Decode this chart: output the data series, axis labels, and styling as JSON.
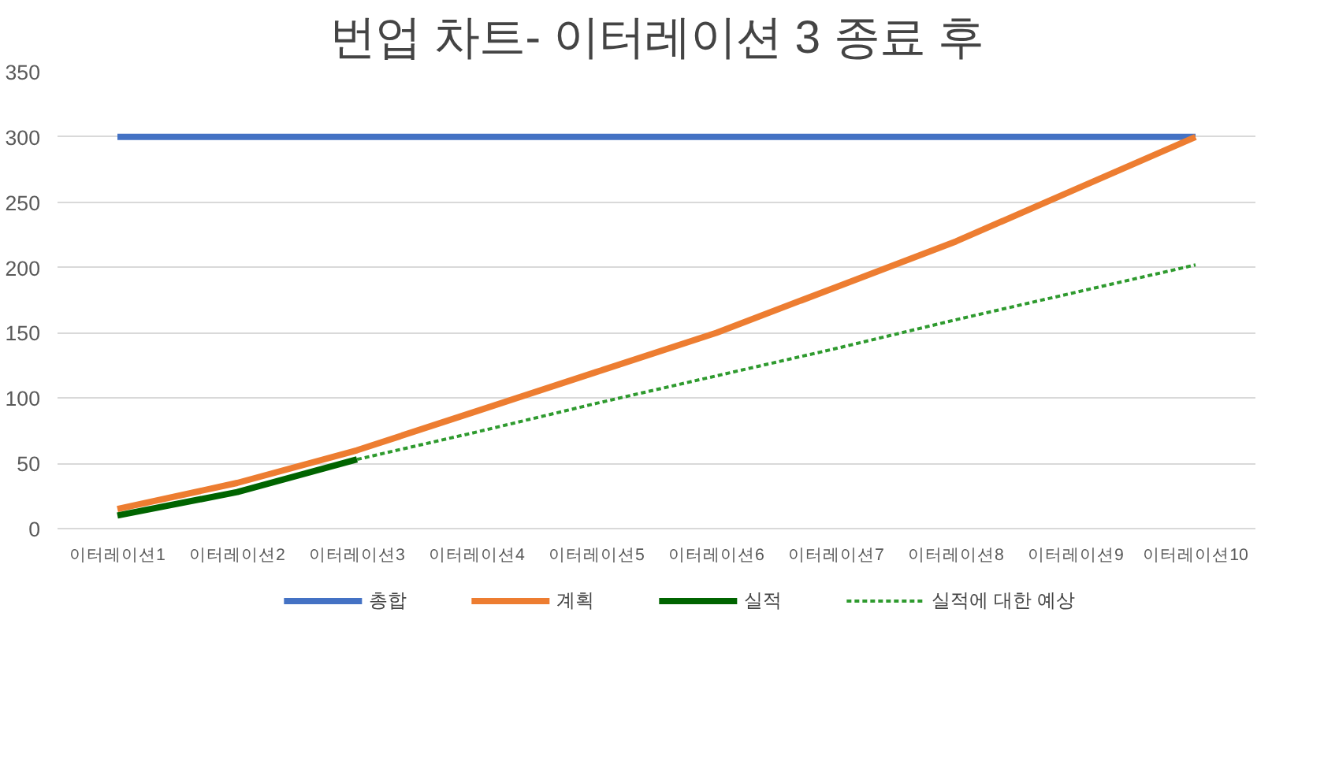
{
  "chart_data": {
    "type": "line",
    "title": "번업 차트- 이터레이션 3 종료 후",
    "categories": [
      "이터레이션1",
      "이터레이션2",
      "이터레이션3",
      "이터레이션4",
      "이터레이션5",
      "이터레이션6",
      "이터레이션7",
      "이터레이션8",
      "이터레이션9",
      "이터레이션10"
    ],
    "series": [
      {
        "name": "총합",
        "color": "#4472c4",
        "values": [
          300,
          300,
          300,
          300,
          300,
          300,
          300,
          300,
          300,
          300
        ]
      },
      {
        "name": "계획",
        "color": "#ed7d31",
        "values": [
          15,
          35,
          60,
          90,
          120,
          150,
          185,
          220,
          260,
          300
        ]
      },
      {
        "name": "실적",
        "color": "#006400",
        "values": [
          10,
          28,
          53,
          null,
          null,
          null,
          null,
          null,
          null,
          null
        ]
      },
      {
        "name": "실적에 대한 예상",
        "color": "#2e9a2e",
        "line_style": "dotted",
        "values": [
          null,
          null,
          53,
          74,
          96,
          117,
          138,
          160,
          181,
          202
        ]
      }
    ],
    "ylim": [
      0,
      350
    ],
    "yticks": [
      0,
      50,
      100,
      150,
      200,
      250,
      300,
      350
    ],
    "grid": "y",
    "legend": "bottom",
    "marker": "none",
    "line_style": "solid"
  }
}
